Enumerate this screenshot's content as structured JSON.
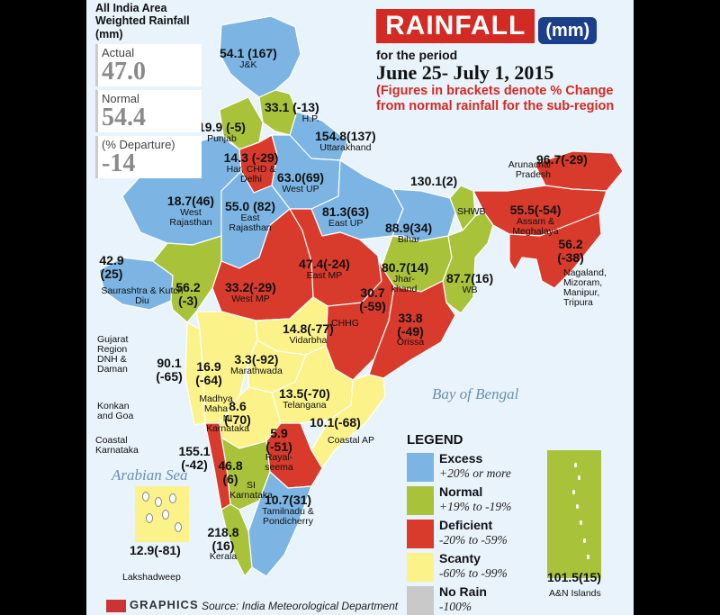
{
  "summary": {
    "title": "All India Area Weighted Rainfall (mm)",
    "actual_label": "Actual",
    "actual_value": "47.0",
    "normal_label": "Normal",
    "normal_value": "54.4",
    "departure_label": "(% Departure)",
    "departure_value": "-14"
  },
  "header": {
    "title": "RAINFALL",
    "unit": "(mm)",
    "period_label": "for the period",
    "dates": "June 25- July 1, 2015",
    "note": "(Figures in brackets denote % Change from normal rainfall for the sub-region"
  },
  "colors": {
    "excess": "#7cb5e4",
    "normal": "#a8c23a",
    "deficient": "#d83a2b",
    "scanty": "#fbf38a",
    "no_rain": "#c9c9c9",
    "sea": "#e8f3fb"
  },
  "regions": [
    {
      "id": "jk",
      "name": "J&K",
      "value": "54.1 (167)",
      "category": "excess"
    },
    {
      "id": "hp",
      "name": "H.P.",
      "value": "33.1 (-13)",
      "category": "normal"
    },
    {
      "id": "punjab",
      "name": "Punjab",
      "value": "19.9 (-5)",
      "category": "normal"
    },
    {
      "id": "har",
      "name": "Har, CHD & Delhi",
      "value": "14.3 (-29)",
      "category": "deficient"
    },
    {
      "id": "uk",
      "name": "Uttarakhand",
      "value": "154.8(137)",
      "category": "excess"
    },
    {
      "id": "wup",
      "name": "West UP",
      "value": "63.0(69)",
      "category": "excess"
    },
    {
      "id": "wraj",
      "name": "West Rajasthan",
      "value": "18.7(46)",
      "category": "excess"
    },
    {
      "id": "eraj",
      "name": "East Rajasthan",
      "value": "55.0 (82)",
      "category": "excess"
    },
    {
      "id": "eup",
      "name": "East UP",
      "value": "81.3(63)",
      "category": "excess"
    },
    {
      "id": "bihar",
      "name": "Bihar",
      "value": "88.9(34)",
      "category": "excess"
    },
    {
      "id": "shwb",
      "name": "SHWB",
      "value": "130.1(2)",
      "category": "normal"
    },
    {
      "id": "arunachal",
      "name": "Arunachal Pradesh",
      "value": "96.7(-29)",
      "category": "deficient"
    },
    {
      "id": "assam",
      "name": "Assam & Meghalaya",
      "value": "55.5(-54)",
      "category": "deficient"
    },
    {
      "id": "nmmt",
      "name": "Nagaland, Mizoram, Manipur, Tripura",
      "value": "56.2 (-38)",
      "category": "deficient"
    },
    {
      "id": "saurashtra",
      "name": "Saurashtra & Kutch Diu",
      "value": "42.9 (25)",
      "category": "excess"
    },
    {
      "id": "gujarat",
      "name": "Gujarat Region DNH & Daman",
      "value": "56.2 (-3)",
      "category": "normal"
    },
    {
      "id": "wmp",
      "name": "West MP",
      "value": "33.2(-29)",
      "category": "deficient"
    },
    {
      "id": "emp",
      "name": "East MP",
      "value": "47.4(-24)",
      "category": "deficient"
    },
    {
      "id": "jharkhand",
      "name": "Jhar-khand",
      "value": "80.7(14)",
      "category": "normal"
    },
    {
      "id": "wb",
      "name": "WB",
      "value": "87.7(16)",
      "category": "normal"
    },
    {
      "id": "chhg",
      "name": "CHHG",
      "value": "30.7 (-59)",
      "category": "deficient"
    },
    {
      "id": "orissa",
      "name": "Orissa",
      "value": "33.8 (-49)",
      "category": "deficient"
    },
    {
      "id": "vidarbha",
      "name": "Vidarbha",
      "value": "14.8(-77)",
      "category": "scanty"
    },
    {
      "id": "konkan",
      "name": "Konkan and Goa",
      "value": "90.1 (-65)",
      "category": "scanty"
    },
    {
      "id": "mm",
      "name": "Madhya Maha",
      "value": "16.9 (-64)",
      "category": "scanty"
    },
    {
      "id": "marathwada",
      "name": "Marathwada",
      "value": "3.3(-92)",
      "category": "scanty"
    },
    {
      "id": "nik",
      "name": "NI Karnataka",
      "value": "8.6 (-70)",
      "category": "scanty"
    },
    {
      "id": "telangana",
      "name": "Telangana",
      "value": "13.5(-70)",
      "category": "scanty"
    },
    {
      "id": "coastalap",
      "name": "Coastal AP",
      "value": "10.1(-68)",
      "category": "scanty"
    },
    {
      "id": "coastalk",
      "name": "Coastal Karnataka",
      "value": "155.1 (-42)",
      "category": "deficient"
    },
    {
      "id": "rayalaseema",
      "name": "Rayal-seema",
      "value": "5.9 (-51)",
      "category": "deficient"
    },
    {
      "id": "sik",
      "name": "SI Karnataka",
      "value": "46.8 (6)",
      "category": "normal"
    },
    {
      "id": "tn",
      "name": "Tamilnadu & Pondicherry",
      "value": "10.7(31)",
      "category": "excess"
    },
    {
      "id": "kerala",
      "name": "Kerala",
      "value": "218.8 (16)",
      "category": "normal"
    },
    {
      "id": "lakshadweep",
      "name": "Lakshadweep",
      "value": "12.9(-81)",
      "category": "scanty"
    },
    {
      "id": "an",
      "name": "A&N Islands",
      "value": "101.5(15)",
      "category": "normal"
    }
  ],
  "seas": {
    "arabian": "Arabian Sea",
    "bengal": "Bay of Bengal"
  },
  "legend": {
    "title": "LEGEND",
    "items": [
      {
        "label": "Excess",
        "range": "+20% or more",
        "color": "#7cb5e4"
      },
      {
        "label": "Normal",
        "range": "+19% to -19%",
        "color": "#a8c23a"
      },
      {
        "label": "Deficient",
        "range": "-20% to -59%",
        "color": "#d83a2b"
      },
      {
        "label": "Scanty",
        "range": "-60% to -99%",
        "color": "#fbf38a"
      },
      {
        "label": "No Rain",
        "range": "-100%",
        "color": "#c9c9c9"
      }
    ]
  },
  "footer": {
    "brand": "GRAPHICS",
    "source": "Source: India Meteorological Department"
  }
}
